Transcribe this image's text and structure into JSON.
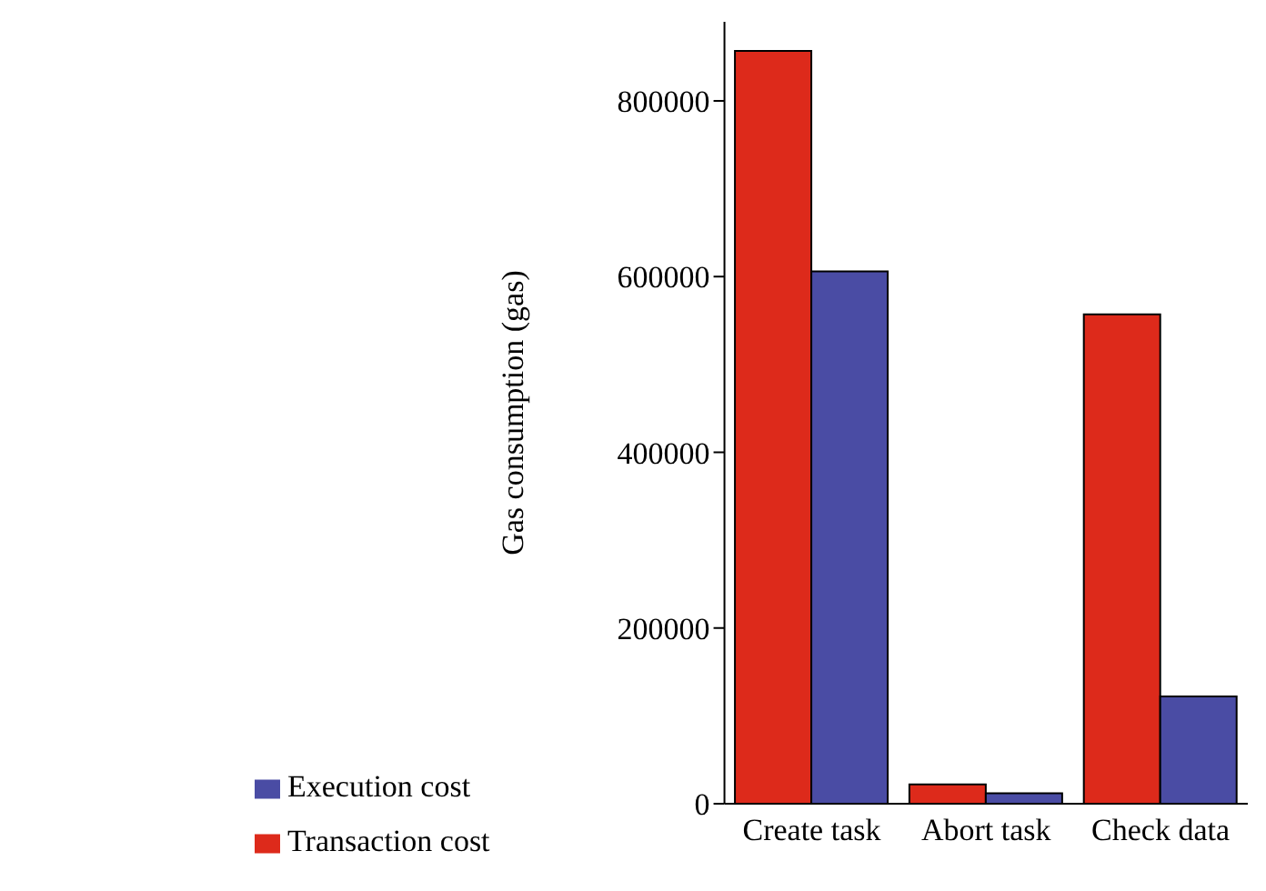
{
  "chart_data": {
    "type": "bar",
    "ylabel": "Gas consumption (gas)",
    "categories": [
      "Create task",
      "Abort task",
      "Check data"
    ],
    "series": [
      {
        "name": "Transaction cost",
        "color": "#dd2a1b",
        "values": [
          857000,
          22000,
          557000
        ]
      },
      {
        "name": "Execution cost",
        "color": "#4a4ca4",
        "values": [
          606000,
          12000,
          122000
        ]
      }
    ],
    "ylim": [
      0,
      890000
    ],
    "yticks": [
      0,
      200000,
      400000,
      600000,
      800000
    ],
    "grid": false,
    "legend": "bottom left"
  }
}
